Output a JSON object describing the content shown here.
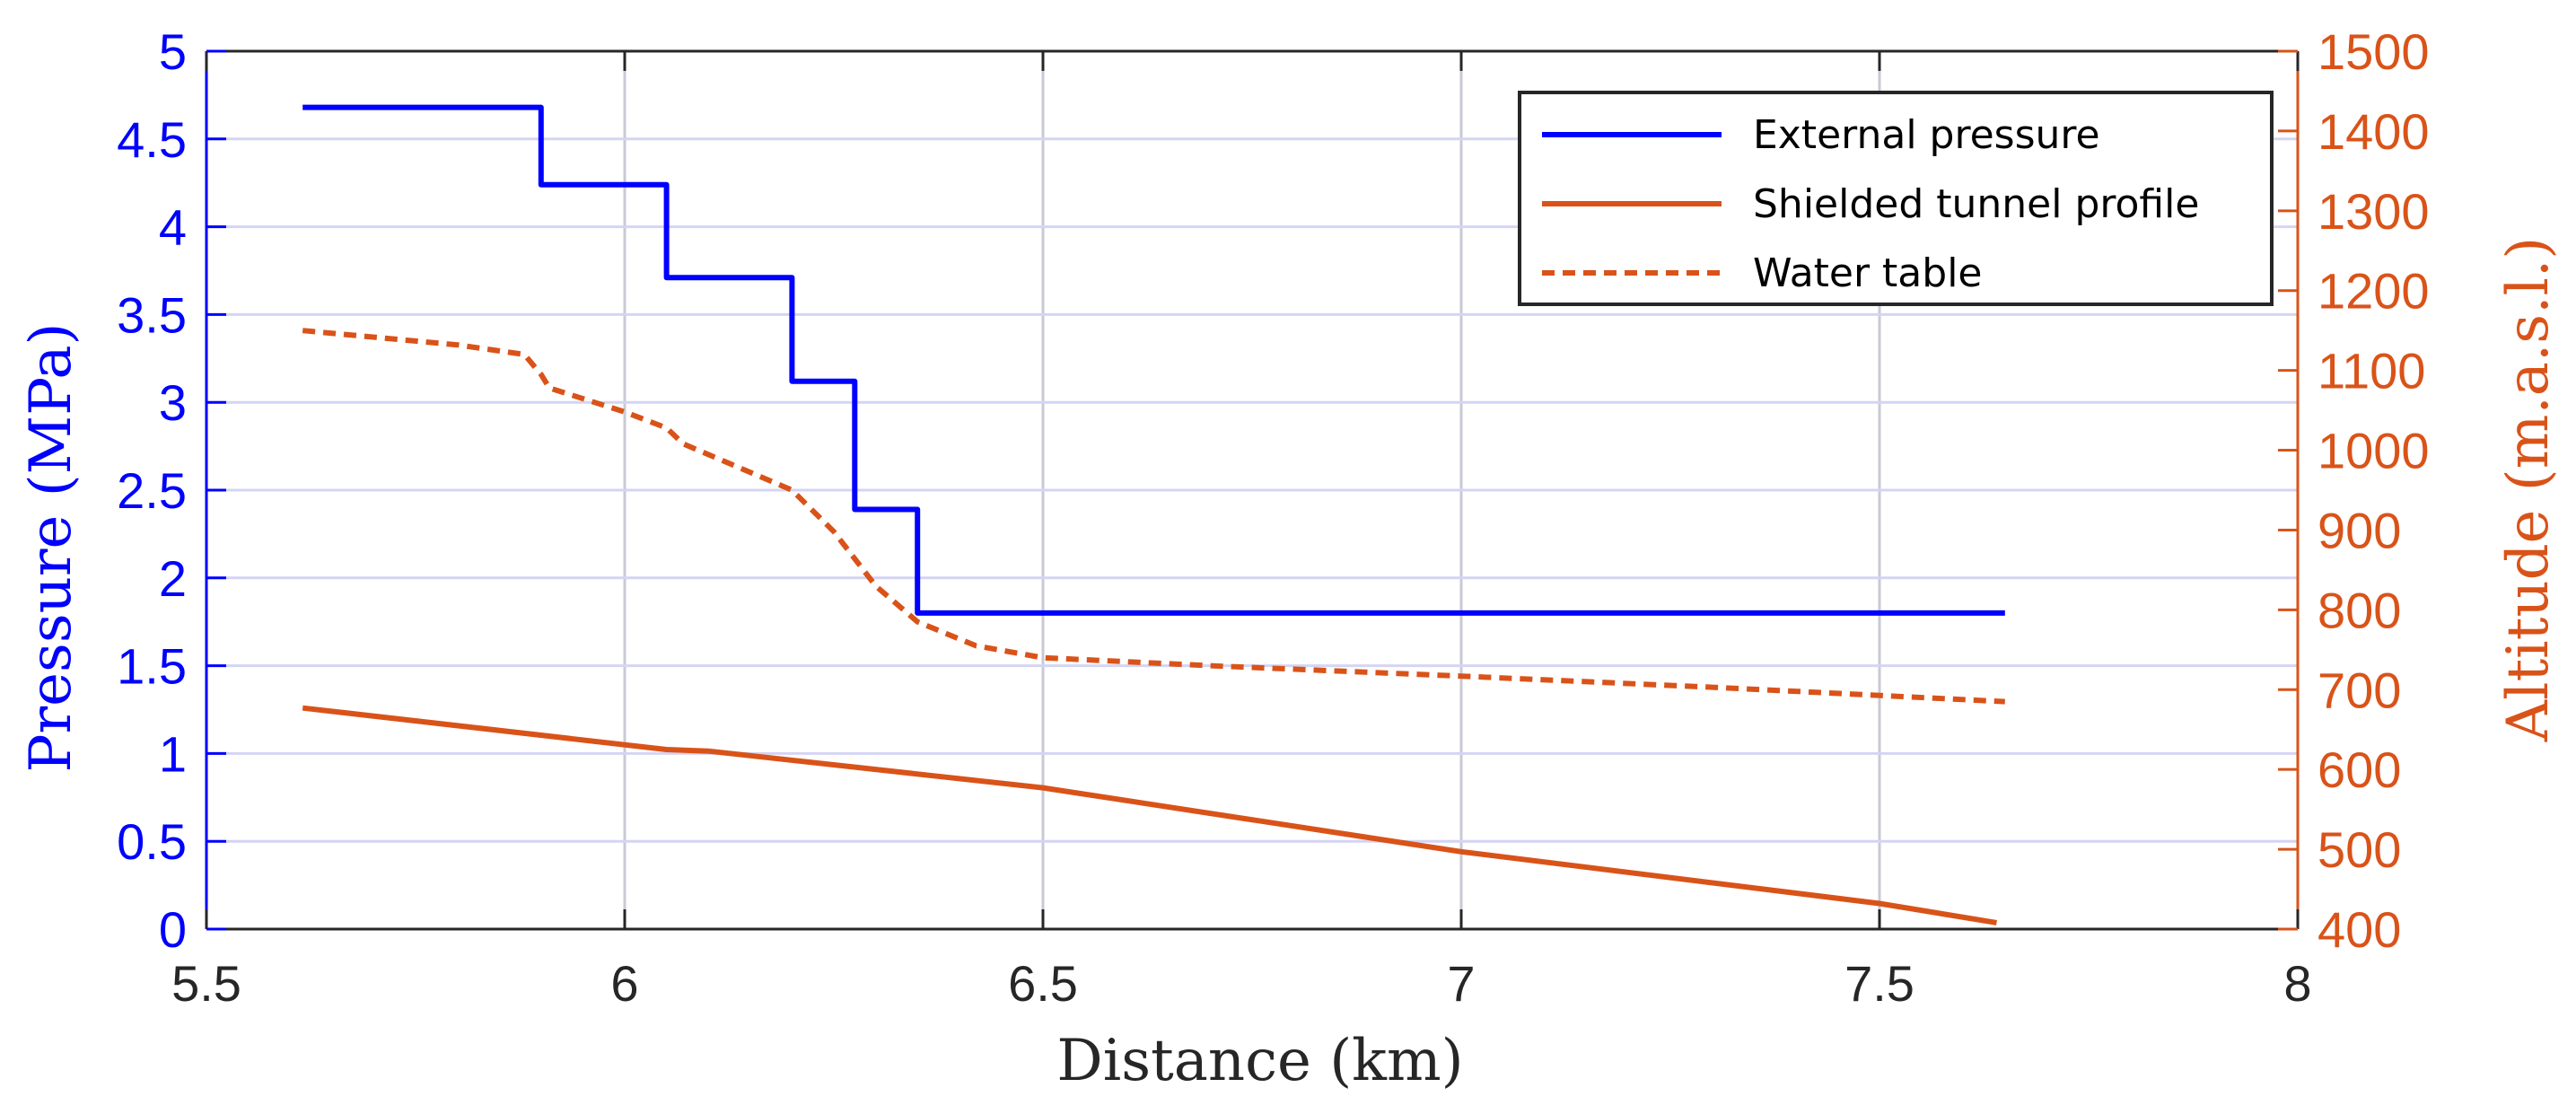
{
  "chart_data": {
    "type": "line",
    "xlabel": "Distance (km)",
    "ylabel_left": "Pressure (MPa)",
    "ylabel_right": "Altitude (m.a.s.l.)",
    "xlim": [
      5.5,
      8
    ],
    "ylim_left": [
      0,
      5
    ],
    "ylim_right": [
      400,
      1500
    ],
    "x_ticks": [
      5.5,
      6,
      6.5,
      7,
      7.5,
      8
    ],
    "x_tick_labels": [
      "5.5",
      "6",
      "6.5",
      "7",
      "7.5",
      "8"
    ],
    "y_left_ticks": [
      0,
      0.5,
      1,
      1.5,
      2,
      2.5,
      3,
      3.5,
      4,
      4.5,
      5
    ],
    "y_left_tick_labels": [
      "0",
      "0.5",
      "1",
      "1.5",
      "2",
      "2.5",
      "3",
      "3.5",
      "4",
      "4.5",
      "5"
    ],
    "y_right_ticks": [
      400,
      500,
      600,
      700,
      800,
      900,
      1000,
      1100,
      1200,
      1300,
      1400,
      1500
    ],
    "y_right_tick_labels": [
      "400",
      "500",
      "600",
      "700",
      "800",
      "900",
      "1000",
      "1100",
      "1200",
      "1300",
      "1400",
      "1500"
    ],
    "grid": true,
    "legend_position": "top-right",
    "colors": {
      "left_axis": "#0000ff",
      "right_axis": "#d95319",
      "axis_dark": "#262626"
    },
    "series": [
      {
        "name": "External pressure",
        "axis": "left",
        "color": "#0000ff",
        "style": "solid",
        "x": [
          5.615,
          5.9,
          5.9,
          6.05,
          6.05,
          6.2,
          6.2,
          6.275,
          6.275,
          6.35,
          6.35,
          7.65
        ],
        "y": [
          4.68,
          4.68,
          4.24,
          4.24,
          3.71,
          3.71,
          3.12,
          3.12,
          2.39,
          2.39,
          1.8,
          1.8
        ]
      },
      {
        "name": "Shielded tunnel profile",
        "axis": "right",
        "color": "#d95319",
        "style": "solid",
        "x": [
          5.615,
          6.05,
          6.1,
          6.5,
          7.0,
          7.5,
          7.64
        ],
        "y": [
          677,
          625,
          623,
          577,
          497,
          432,
          408
        ]
      },
      {
        "name": "Water table",
        "axis": "right",
        "color": "#d95319",
        "style": "dashed",
        "x": [
          5.615,
          5.8,
          5.88,
          5.9,
          5.91,
          6.0,
          6.05,
          6.07,
          6.2,
          6.25,
          6.3,
          6.35,
          6.42,
          6.5,
          6.7,
          7.0,
          7.3,
          7.65
        ],
        "y": [
          1150,
          1132,
          1120,
          1095,
          1078,
          1048,
          1028,
          1008,
          950,
          898,
          830,
          785,
          755,
          740,
          730,
          717,
          703,
          685
        ]
      }
    ]
  }
}
